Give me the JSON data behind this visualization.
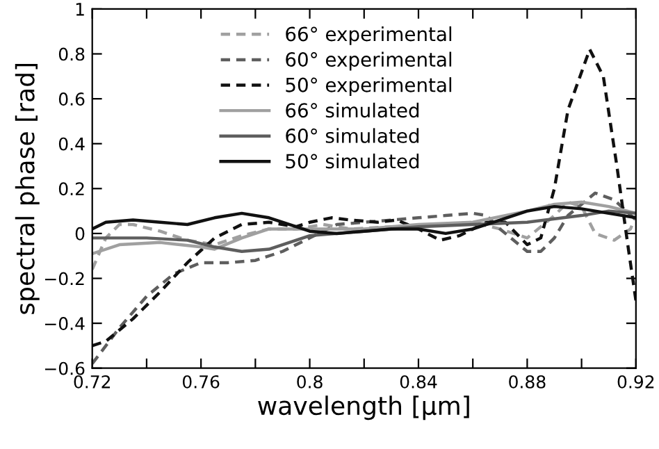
{
  "chart_data": {
    "type": "line",
    "xlabel": "wavelength [µm]",
    "ylabel": "spectral phase [rad]",
    "xlim": [
      0.72,
      0.92
    ],
    "ylim": [
      -0.6,
      1
    ],
    "xticks": [
      0.72,
      {
        "value": 0.74,
        "label": null
      },
      0.76,
      {
        "value": 0.78,
        "label": null
      },
      0.8,
      {
        "value": 0.82,
        "label": null
      },
      0.84,
      {
        "value": 0.86,
        "label": null
      },
      0.88,
      {
        "value": 0.9,
        "label": null
      },
      0.92
    ],
    "yticks": [
      {
        "value": -0.6,
        "label": "−0.6"
      },
      {
        "value": -0.4,
        "label": "−0.4"
      },
      {
        "value": -0.2,
        "label": "−0.2"
      },
      0,
      0.2,
      0.4,
      0.6,
      0.8,
      1
    ],
    "grid": false,
    "legend": "top",
    "marker": "none",
    "series": [
      {
        "name": "66° experimental",
        "color": "#a0a0a0",
        "line_style": "dashed",
        "x": [
          0.72,
          0.725,
          0.73,
          0.735,
          0.745,
          0.755,
          0.765,
          0.775,
          0.785,
          0.795,
          0.805,
          0.815,
          0.83,
          0.84,
          0.85,
          0.86,
          0.87,
          0.88,
          0.89,
          0.895,
          0.9,
          0.905,
          0.912,
          0.918,
          0.92
        ],
        "values": [
          -0.16,
          -0.02,
          0.04,
          0.04,
          0.01,
          -0.03,
          -0.05,
          -0.01,
          0.02,
          0.02,
          0.04,
          0.02,
          0.03,
          0.03,
          0.04,
          0.05,
          0.02,
          -0.02,
          0.08,
          0.14,
          0.12,
          0.0,
          -0.03,
          0.02,
          0.08
        ]
      },
      {
        "name": "60° experimental",
        "color": "#5e5e5e",
        "line_style": "dashed",
        "x": [
          0.72,
          0.73,
          0.74,
          0.75,
          0.76,
          0.77,
          0.78,
          0.79,
          0.8,
          0.81,
          0.82,
          0.83,
          0.84,
          0.85,
          0.86,
          0.865,
          0.87,
          0.88,
          0.885,
          0.89,
          0.895,
          0.905,
          0.912,
          0.92
        ],
        "values": [
          -0.58,
          -0.42,
          -0.28,
          -0.18,
          -0.13,
          -0.13,
          -0.12,
          -0.08,
          -0.02,
          0.04,
          0.05,
          0.06,
          0.07,
          0.08,
          0.09,
          0.08,
          0.02,
          -0.08,
          -0.08,
          -0.02,
          0.08,
          0.18,
          0.15,
          0.06
        ]
      },
      {
        "name": "50° experimental",
        "color": "#111111",
        "line_style": "dashed",
        "x": [
          0.72,
          0.725,
          0.735,
          0.745,
          0.755,
          0.765,
          0.775,
          0.785,
          0.795,
          0.8,
          0.808,
          0.815,
          0.825,
          0.832,
          0.84,
          0.848,
          0.855,
          0.865,
          0.872,
          0.88,
          0.885,
          0.89,
          0.895,
          0.903,
          0.908,
          0.913,
          0.917,
          0.92
        ],
        "values": [
          -0.5,
          -0.48,
          -0.38,
          -0.26,
          -0.13,
          -0.02,
          0.04,
          0.05,
          0.03,
          0.05,
          0.07,
          0.06,
          0.05,
          0.06,
          0.02,
          -0.03,
          -0.01,
          0.05,
          0.05,
          -0.05,
          -0.02,
          0.2,
          0.55,
          0.82,
          0.7,
          0.3,
          -0.05,
          -0.3
        ]
      },
      {
        "name": "66° simulated",
        "color": "#a0a0a0",
        "line_style": "solid",
        "x": [
          0.72,
          0.73,
          0.745,
          0.76,
          0.765,
          0.775,
          0.785,
          0.8,
          0.82,
          0.84,
          0.86,
          0.88,
          0.89,
          0.9,
          0.91,
          0.92
        ],
        "values": [
          -0.09,
          -0.05,
          -0.04,
          -0.06,
          -0.07,
          -0.02,
          0.02,
          0.02,
          0.02,
          0.04,
          0.05,
          0.1,
          0.13,
          0.14,
          0.12,
          0.09
        ]
      },
      {
        "name": "60° simulated",
        "color": "#5e5e5e",
        "line_style": "solid",
        "x": [
          0.72,
          0.74,
          0.755,
          0.765,
          0.775,
          0.785,
          0.795,
          0.8,
          0.82,
          0.84,
          0.86,
          0.88,
          0.9,
          0.91,
          0.92
        ],
        "values": [
          -0.02,
          -0.02,
          -0.03,
          -0.06,
          -0.08,
          -0.07,
          -0.03,
          -0.01,
          0.01,
          0.03,
          0.04,
          0.05,
          0.08,
          0.1,
          0.09
        ]
      },
      {
        "name": "50° simulated",
        "color": "#111111",
        "line_style": "solid",
        "x": [
          0.72,
          0.725,
          0.735,
          0.745,
          0.755,
          0.765,
          0.775,
          0.785,
          0.795,
          0.8,
          0.81,
          0.82,
          0.83,
          0.84,
          0.85,
          0.86,
          0.87,
          0.88,
          0.89,
          0.9,
          0.91,
          0.92
        ],
        "values": [
          0.02,
          0.05,
          0.06,
          0.05,
          0.04,
          0.07,
          0.09,
          0.07,
          0.03,
          0.01,
          0.0,
          0.01,
          0.02,
          0.02,
          0.0,
          0.02,
          0.06,
          0.1,
          0.12,
          0.11,
          0.09,
          0.07
        ]
      }
    ]
  }
}
